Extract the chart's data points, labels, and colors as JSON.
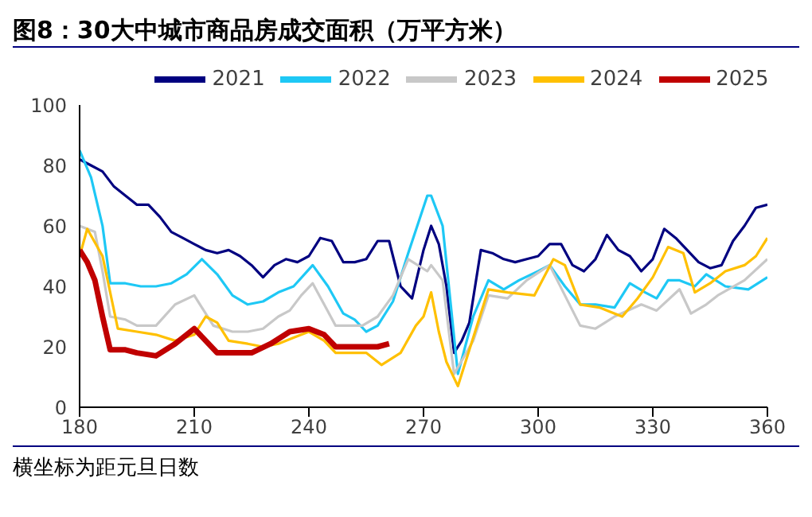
{
  "chart_data": {
    "type": "line",
    "title": "图8：30大中城市商品房成交面积（万平方米）",
    "annotations": [
      "横坐标为距元旦日数"
    ],
    "xlim": [
      180,
      360
    ],
    "xticks": [
      180,
      210,
      240,
      270,
      300,
      330,
      360
    ],
    "ylim": [
      0,
      100
    ],
    "yticks": [
      0,
      20,
      40,
      60,
      80,
      100
    ],
    "legend": "top",
    "marker": "none",
    "line_style": "solid",
    "series": [
      {
        "name": "2021",
        "color": "#000080",
        "x": [
          180,
          183,
          186,
          189,
          192,
          195,
          198,
          201,
          204,
          207,
          210,
          213,
          216,
          219,
          222,
          225,
          228,
          231,
          234,
          237,
          240,
          243,
          246,
          249,
          252,
          255,
          258,
          261,
          264,
          267,
          270,
          272,
          274,
          276,
          278,
          280,
          282,
          285,
          288,
          291,
          294,
          297,
          300,
          303,
          306,
          309,
          312,
          315,
          318,
          321,
          324,
          327,
          330,
          333,
          336,
          339,
          342,
          345,
          348,
          351,
          354,
          357,
          360
        ],
        "values": [
          82,
          80,
          78,
          73,
          70,
          67,
          67,
          63,
          58,
          56,
          54,
          52,
          51,
          52,
          50,
          47,
          43,
          47,
          49,
          48,
          50,
          56,
          55,
          48,
          48,
          49,
          55,
          55,
          40,
          36,
          52,
          60,
          54,
          40,
          18,
          22,
          28,
          52,
          51,
          49,
          48,
          49,
          50,
          54,
          54,
          47,
          45,
          49,
          57,
          52,
          50,
          45,
          49,
          59,
          56,
          52,
          48,
          46,
          47,
          55,
          60,
          66,
          67
        ]
      },
      {
        "name": "2022",
        "color": "#1ec8f5",
        "x": [
          180,
          183,
          186,
          188,
          192,
          196,
          200,
          204,
          208,
          212,
          216,
          220,
          224,
          228,
          232,
          236,
          241,
          245,
          249,
          252,
          255,
          258,
          262,
          266,
          271,
          272,
          275,
          279,
          283,
          287,
          291,
          295,
          300,
          303,
          307,
          311,
          315,
          320,
          324,
          328,
          331,
          334,
          337,
          341,
          344,
          349,
          355,
          360
        ],
        "values": [
          85,
          76,
          60,
          41,
          41,
          40,
          40,
          41,
          44,
          49,
          44,
          37,
          34,
          35,
          38,
          40,
          47,
          40,
          31,
          29,
          25,
          27,
          35,
          51,
          70,
          70,
          60,
          11,
          30,
          42,
          39,
          42,
          45,
          47,
          40,
          34,
          34,
          33,
          41,
          38,
          36,
          42,
          42,
          40,
          44,
          40,
          39,
          43
        ]
      },
      {
        "name": "2023",
        "color": "#c8c8c8",
        "x": [
          180,
          184,
          186,
          188,
          192,
          195,
          200,
          205,
          210,
          215,
          220,
          224,
          228,
          232,
          235,
          238,
          241,
          244,
          247,
          250,
          254,
          258,
          262,
          266,
          271,
          272,
          275,
          278,
          283,
          287,
          292,
          297,
          303,
          307,
          311,
          315,
          320,
          327,
          331,
          337,
          340,
          344,
          347,
          354,
          360
        ],
        "values": [
          60,
          58,
          45,
          30,
          29,
          27,
          27,
          34,
          37,
          27,
          25,
          25,
          26,
          30,
          32,
          37,
          41,
          34,
          27,
          27,
          27,
          30,
          37,
          49,
          45,
          47,
          42,
          11,
          22,
          37,
          36,
          42,
          47,
          37,
          27,
          26,
          30,
          34,
          32,
          39,
          31,
          34,
          37,
          42,
          49
        ]
      },
      {
        "name": "2024",
        "color": "#ffc000",
        "x": [
          180,
          182,
          186,
          190,
          195,
          200,
          205,
          210,
          213,
          216,
          219,
          224,
          228,
          232,
          236,
          240,
          244,
          247,
          251,
          255,
          259,
          264,
          268,
          270,
          272,
          274,
          276,
          279,
          282,
          287,
          292,
          299,
          304,
          307,
          311,
          316,
          322,
          326,
          330,
          334,
          338,
          341,
          345,
          349,
          354,
          357,
          360
        ],
        "values": [
          50,
          59,
          50,
          26,
          25,
          24,
          22,
          24,
          30,
          28,
          22,
          21,
          20,
          21,
          23,
          25,
          22,
          18,
          18,
          18,
          14,
          18,
          27,
          30,
          38,
          25,
          15,
          7,
          19,
          39,
          38,
          37,
          49,
          47,
          34,
          33,
          30,
          36,
          43,
          53,
          51,
          38,
          41,
          45,
          47,
          50,
          56
        ]
      },
      {
        "name": "2025",
        "color": "#c00000",
        "x": [
          180,
          182,
          184,
          186,
          188,
          192,
          195,
          200,
          205,
          210,
          213,
          216,
          220,
          225,
          230,
          235,
          240,
          244,
          247,
          251,
          255,
          258,
          261
        ],
        "values": [
          52,
          48,
          42,
          30,
          19,
          19,
          18,
          17,
          21,
          26,
          22,
          18,
          18,
          18,
          21,
          25,
          26,
          24,
          20,
          20,
          20,
          20,
          21
        ]
      }
    ]
  }
}
